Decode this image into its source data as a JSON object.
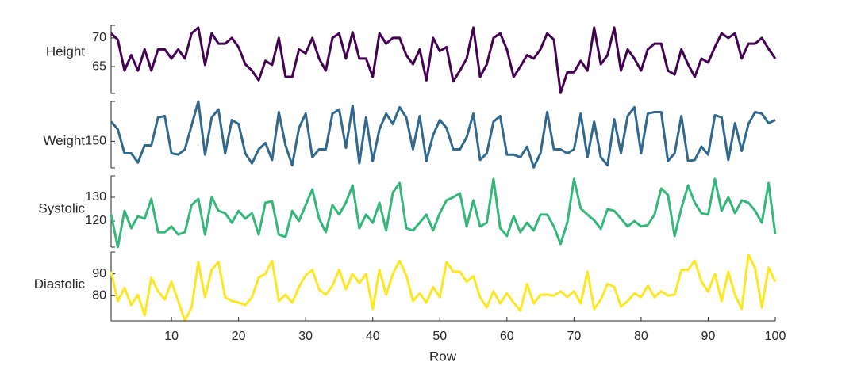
{
  "chart_data": {
    "type": "stacked_line",
    "xlabel": "Row",
    "x": [
      1,
      2,
      3,
      4,
      5,
      6,
      7,
      8,
      9,
      10,
      11,
      12,
      13,
      14,
      15,
      16,
      17,
      18,
      19,
      20,
      21,
      22,
      23,
      24,
      25,
      26,
      27,
      28,
      29,
      30,
      31,
      32,
      33,
      34,
      35,
      36,
      37,
      38,
      39,
      40,
      41,
      42,
      43,
      44,
      45,
      46,
      47,
      48,
      49,
      50,
      51,
      52,
      53,
      54,
      55,
      56,
      57,
      58,
      59,
      60,
      61,
      62,
      63,
      64,
      65,
      66,
      67,
      68,
      69,
      70,
      71,
      72,
      73,
      74,
      75,
      76,
      77,
      78,
      79,
      80,
      81,
      82,
      83,
      84,
      85,
      86,
      87,
      88,
      89,
      90,
      91,
      92,
      93,
      94,
      95,
      96,
      97,
      98,
      99,
      100
    ],
    "xlim": [
      1,
      100
    ],
    "xticks": [
      10,
      20,
      30,
      40,
      50,
      60,
      70,
      80,
      90,
      100
    ],
    "series": [
      {
        "name": "Height",
        "color": "#440154",
        "ylim": [
          60.3,
          72.2
        ],
        "yticks": [
          65,
          70
        ],
        "values": [
          70.8,
          69.7,
          64.3,
          67,
          64.3,
          68,
          64.3,
          68,
          68,
          66.4,
          68,
          66.4,
          70.8,
          71.8,
          65.3,
          70.8,
          69,
          69,
          70,
          68.4,
          65.4,
          64.3,
          62.6,
          66,
          65.3,
          70,
          63.2,
          63.2,
          68,
          67.3,
          70,
          66.4,
          64.3,
          70,
          70.8,
          66.4,
          71,
          66.4,
          66.4,
          63.2,
          70.8,
          69,
          70,
          70,
          67,
          65.4,
          68,
          62.6,
          70,
          67.7,
          68.4,
          62.4,
          64.3,
          66.4,
          71.8,
          63.2,
          65.4,
          70,
          70.8,
          68,
          63.2,
          65,
          67,
          66.4,
          68,
          70.8,
          69.7,
          60.4,
          64,
          64,
          66,
          64.3,
          71.8,
          65.4,
          67,
          71.8,
          64.3,
          68,
          66.4,
          64.3,
          68,
          69,
          69,
          64.3,
          63.6,
          68,
          65.4,
          63.2,
          66.4,
          65.7,
          68.4,
          70.8,
          70,
          70.8,
          66.4,
          69,
          69,
          70,
          68.1,
          66.4
        ]
      },
      {
        "name": "Weight",
        "color": "#31688e",
        "ylim": [
          140,
          165
        ],
        "yticks": [
          150
        ],
        "values": [
          157.4,
          154.5,
          145.5,
          145.5,
          142,
          148.5,
          148.5,
          159,
          159.5,
          145.5,
          145,
          147,
          156,
          165,
          145,
          159,
          162,
          145.5,
          158,
          156.5,
          145.5,
          141.7,
          147,
          149.4,
          143,
          161,
          148.5,
          141,
          155,
          160.4,
          144,
          147,
          147,
          160.4,
          162,
          147.6,
          163.4,
          141.7,
          159,
          142.6,
          154.5,
          160.4,
          156.5,
          162.8,
          159,
          147,
          159.5,
          142.6,
          152.4,
          158,
          155,
          147,
          147,
          151.5,
          160.4,
          143,
          145.5,
          157.4,
          159.5,
          145,
          145,
          144,
          148,
          140.2,
          145.5,
          161,
          147,
          147,
          145.5,
          147,
          160.4,
          144,
          157.4,
          144,
          141,
          158.3,
          145.5,
          159.5,
          162.8,
          145.5,
          160.4,
          161,
          161,
          142.6,
          145.5,
          159.5,
          142.6,
          143,
          148,
          145,
          159.8,
          159,
          143,
          156.8,
          146.4,
          156.5,
          161,
          160.4,
          156.8,
          158
        ]
      },
      {
        "name": "Systolic",
        "color": "#35b779",
        "ylim": [
          109,
          139
        ],
        "yticks": [
          120,
          130
        ],
        "values": [
          122.7,
          109,
          124.3,
          117,
          122,
          121,
          129.3,
          115.3,
          115.3,
          117.7,
          114.3,
          115.3,
          126.7,
          129.3,
          114.3,
          130,
          124.3,
          123.3,
          119.3,
          124.3,
          121,
          123.3,
          114.3,
          127.7,
          128.3,
          114.3,
          113.3,
          124.3,
          120,
          126.7,
          133.3,
          121,
          115.3,
          126.7,
          122.7,
          127.7,
          135,
          117,
          122.7,
          119.3,
          127.7,
          116,
          132,
          136,
          117,
          116,
          119.3,
          122.7,
          116,
          123.3,
          128.7,
          130,
          131.7,
          117.7,
          128.7,
          117.7,
          119.3,
          137.7,
          117,
          113.7,
          122,
          115.3,
          119.3,
          116,
          122.7,
          122.7,
          117.7,
          110.3,
          119.3,
          137.7,
          125.3,
          122.7,
          120.3,
          116.7,
          125,
          124.3,
          121,
          117.7,
          120,
          117.7,
          118.3,
          122.7,
          133.7,
          131,
          113.7,
          125.3,
          135,
          127.7,
          123.3,
          122.7,
          137.7,
          124.3,
          130,
          123.3,
          128.7,
          127.7,
          124.3,
          119.3,
          136,
          114.3
        ]
      },
      {
        "name": "Diastolic",
        "color": "#fde725",
        "ylim": [
          68.5,
          100
        ],
        "yticks": [
          80,
          90
        ],
        "values": [
          91,
          77.5,
          83.6,
          75.7,
          80.4,
          71,
          88.2,
          82,
          78.2,
          86.4,
          77.5,
          68.6,
          74.6,
          95.4,
          79.3,
          91.8,
          95.4,
          79.3,
          77.5,
          76.8,
          75.7,
          79.3,
          88.2,
          90,
          96,
          77.5,
          80.4,
          76.8,
          84,
          89.3,
          91.8,
          82.9,
          80.4,
          84.6,
          91.8,
          82.9,
          90,
          85.7,
          90,
          73.9,
          91.8,
          80.4,
          90,
          96,
          89.3,
          77.5,
          81.1,
          76.8,
          84,
          79.3,
          95.4,
          91,
          91,
          86.4,
          88.9,
          79.3,
          74.6,
          82,
          76.4,
          81.1,
          76.8,
          73.2,
          85.4,
          76.4,
          80.4,
          80.4,
          80,
          82,
          79.3,
          82,
          76.4,
          91,
          73.9,
          78.2,
          85.4,
          84,
          75,
          77.5,
          81.1,
          79.3,
          84.6,
          79.3,
          82,
          80,
          80.4,
          91.8,
          91.8,
          96,
          86.4,
          81.8,
          90,
          77.5,
          91,
          80.4,
          73.9,
          98.9,
          92.5,
          74.6,
          92.9,
          86.4
        ]
      }
    ]
  }
}
